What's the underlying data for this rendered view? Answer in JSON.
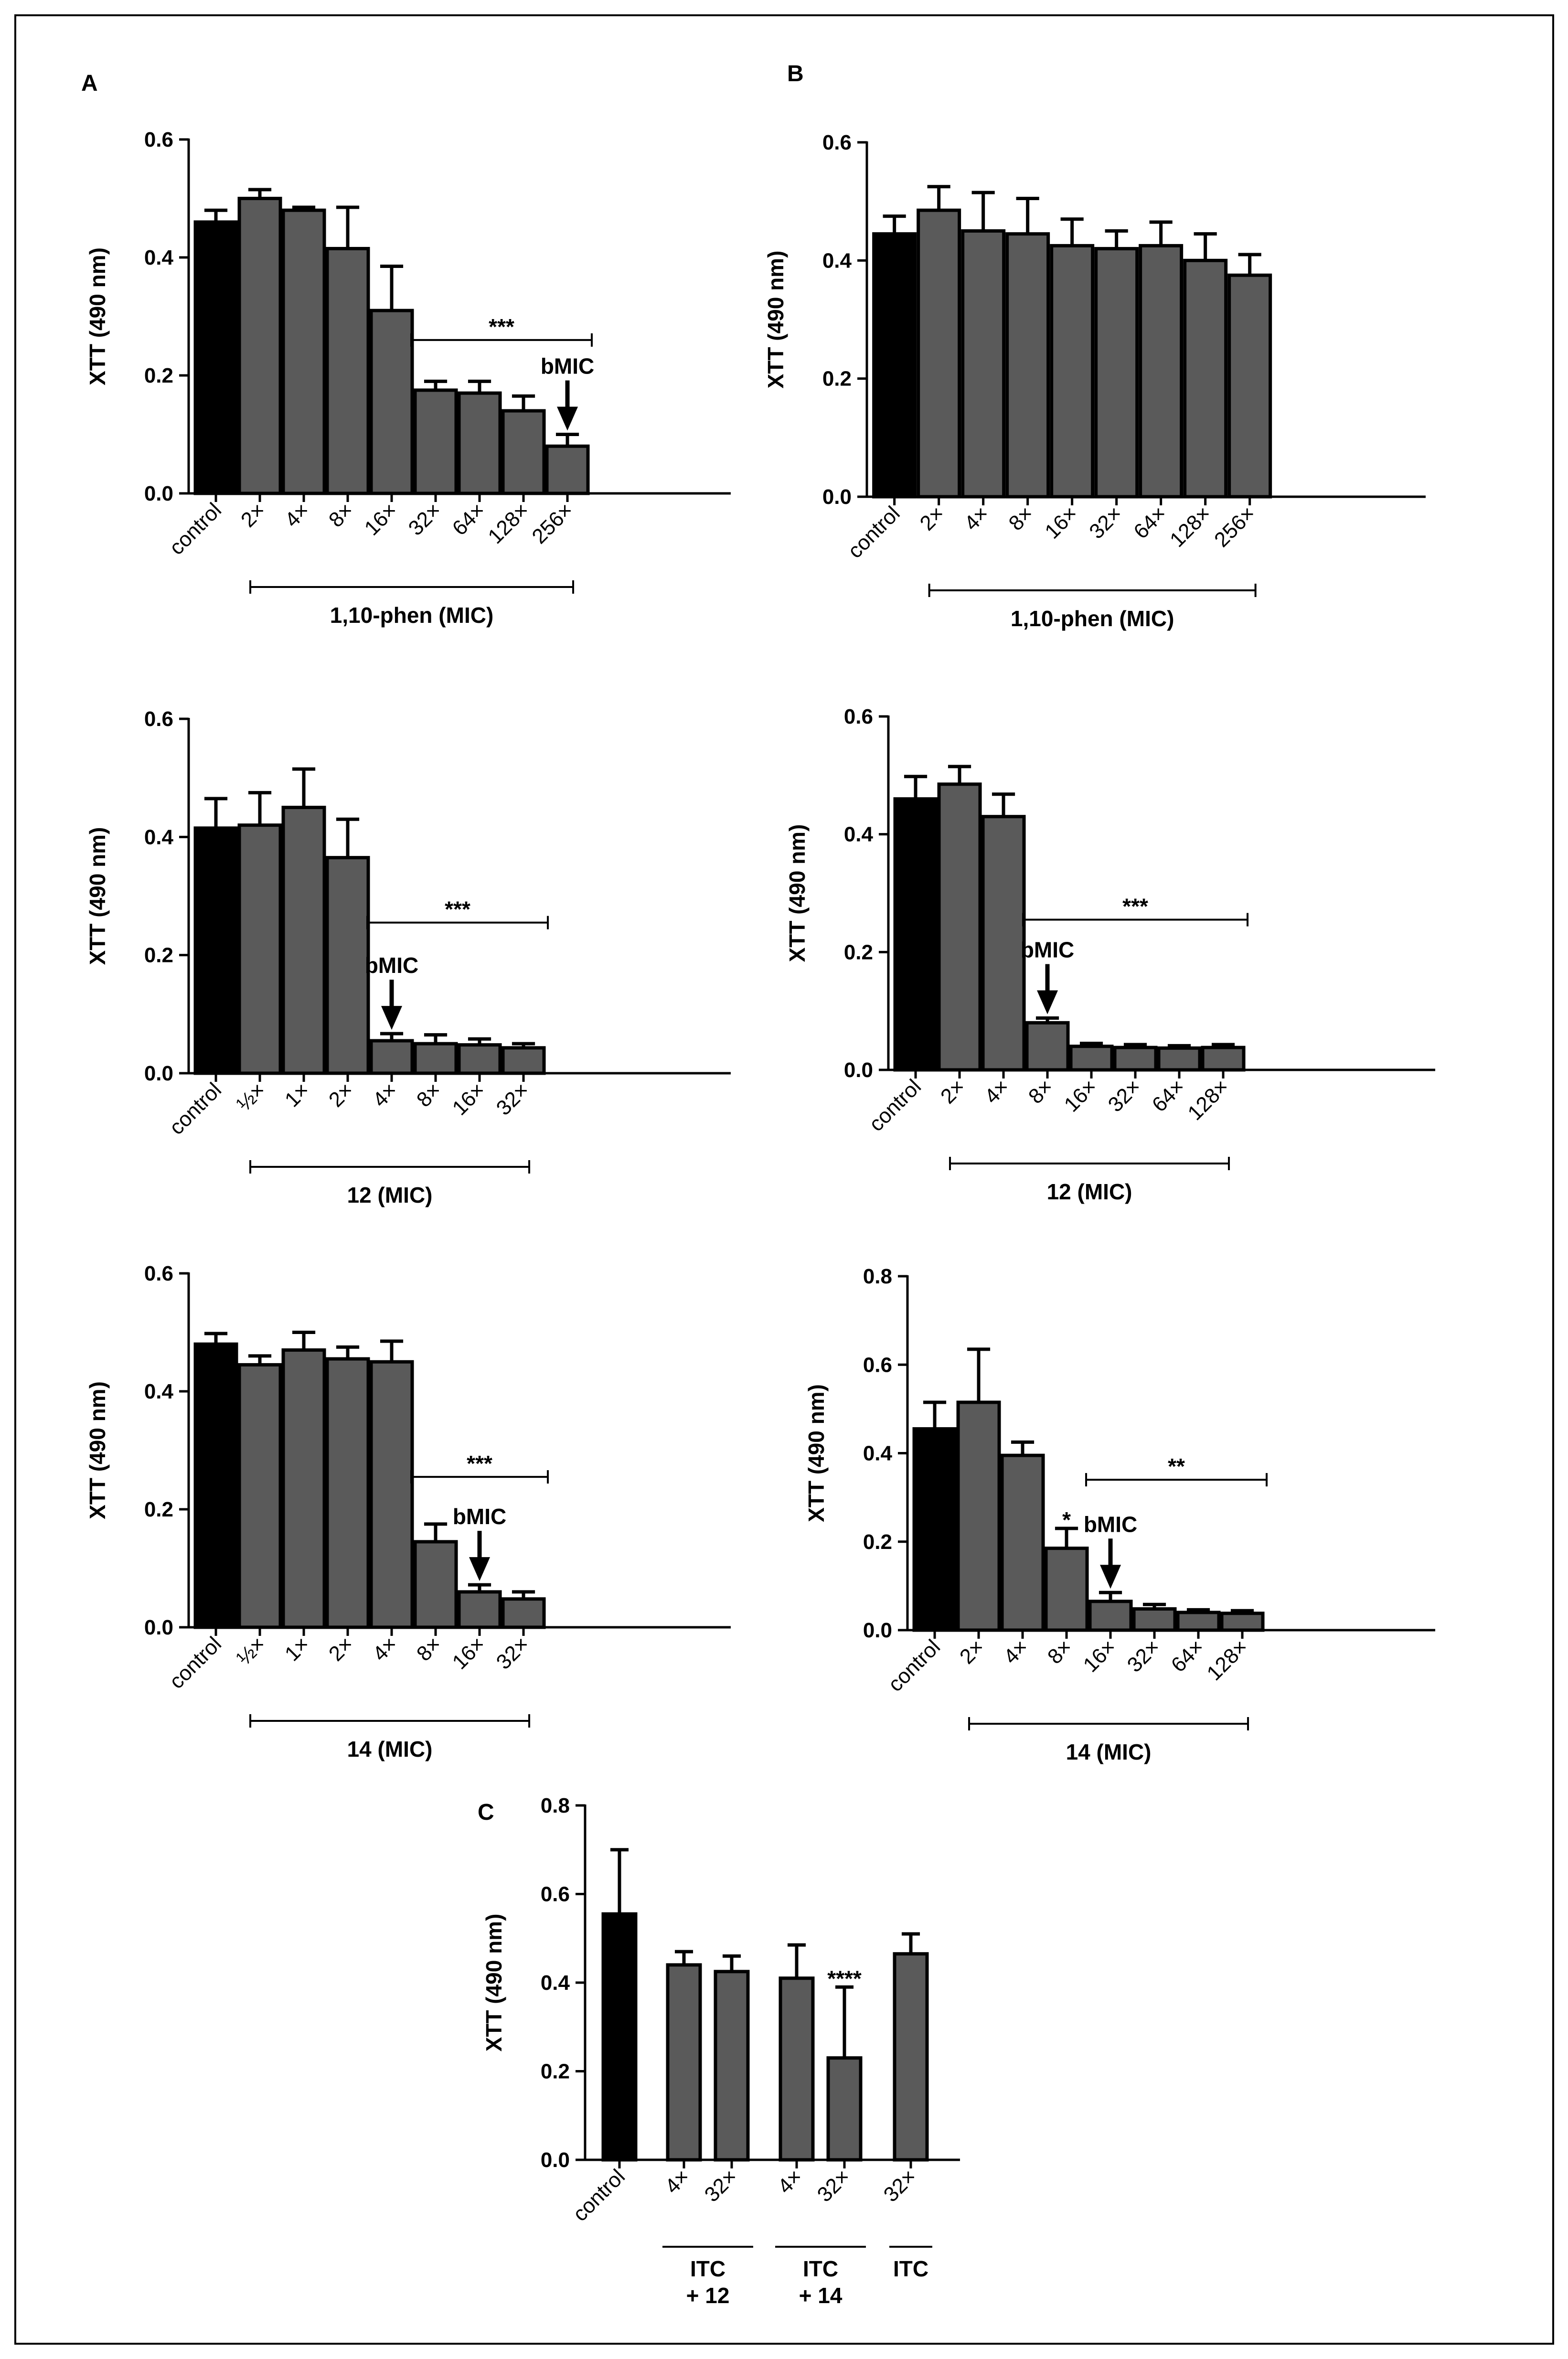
{
  "figure": {
    "panel_labels": [
      "A",
      "B",
      "C"
    ]
  },
  "colors": {
    "control_fill": "#000000",
    "bar_fill": "#5a5a5a",
    "stroke": "#000000",
    "border": "#000000"
  },
  "chart_data": [
    {
      "id": "A1",
      "type": "bar",
      "panel_label": "A",
      "ylabel": "XTT (490 nm)",
      "ylim": [
        0,
        0.6
      ],
      "yticks": [
        "0.0",
        "0.2",
        "0.4",
        "0.6"
      ],
      "categories": [
        "control",
        "2×",
        "4×",
        "8×",
        "16×",
        "32×",
        "64×",
        "128×",
        "256×"
      ],
      "values": [
        0.46,
        0.5,
        0.48,
        0.415,
        0.31,
        0.175,
        0.17,
        0.14,
        0.08
      ],
      "errors": [
        0.02,
        0.015,
        0.005,
        0.07,
        0.075,
        0.015,
        0.02,
        0.025,
        0.02
      ],
      "groups": [
        {
          "label": "1,10-phen (MIC)",
          "from": 1,
          "to": 8
        }
      ],
      "significance": [
        {
          "text": "***",
          "from": 5,
          "to": 8,
          "y": 0.26
        }
      ],
      "bmic": {
        "label": "bMIC",
        "index": 8
      }
    },
    {
      "id": "B1",
      "type": "bar",
      "panel_label": "B",
      "ylabel": "XTT (490 nm)",
      "ylim": [
        0,
        0.6
      ],
      "yticks": [
        "0.0",
        "0.2",
        "0.4",
        "0.6"
      ],
      "categories": [
        "control",
        "2×",
        "4×",
        "8×",
        "16×",
        "32×",
        "64×",
        "128×",
        "256×"
      ],
      "values": [
        0.445,
        0.485,
        0.45,
        0.445,
        0.425,
        0.42,
        0.425,
        0.4,
        0.375
      ],
      "errors": [
        0.03,
        0.04,
        0.065,
        0.06,
        0.045,
        0.03,
        0.04,
        0.045,
        0.035
      ],
      "groups": [
        {
          "label": "1,10-phen (MIC)",
          "from": 1,
          "to": 8
        }
      ],
      "significance": [],
      "bmic": null
    },
    {
      "id": "A2",
      "type": "bar",
      "panel_label": "",
      "ylabel": "XTT (490 nm)",
      "ylim": [
        0,
        0.6
      ],
      "yticks": [
        "0.0",
        "0.2",
        "0.4",
        "0.6"
      ],
      "categories": [
        "control",
        "½×",
        "1×",
        "2×",
        "4×",
        "8×",
        "16×",
        "32×"
      ],
      "values": [
        0.415,
        0.42,
        0.45,
        0.365,
        0.055,
        0.05,
        0.048,
        0.043
      ],
      "errors": [
        0.05,
        0.055,
        0.065,
        0.065,
        0.012,
        0.015,
        0.01,
        0.007
      ],
      "groups": [
        {
          "label": "12 (MIC)",
          "from": 1,
          "to": 7
        }
      ],
      "significance": [
        {
          "text": "***",
          "from": 4,
          "to": 7,
          "y": 0.255
        }
      ],
      "bmic": {
        "label": "bMIC",
        "index": 4
      }
    },
    {
      "id": "B2",
      "type": "bar",
      "panel_label": "",
      "ylabel": "XTT (490 nm)",
      "ylim": [
        0,
        0.6
      ],
      "yticks": [
        "0.0",
        "0.2",
        "0.4",
        "0.6"
      ],
      "categories": [
        "control",
        "2×",
        "4×",
        "8×",
        "16×",
        "32×",
        "64×",
        "128×"
      ],
      "values": [
        0.46,
        0.485,
        0.43,
        0.08,
        0.04,
        0.038,
        0.037,
        0.038
      ],
      "errors": [
        0.038,
        0.03,
        0.038,
        0.008,
        0.005,
        0.005,
        0.004,
        0.005
      ],
      "groups": [
        {
          "label": "12 (MIC)",
          "from": 1,
          "to": 7
        }
      ],
      "significance": [
        {
          "text": "***",
          "from": 3,
          "to": 7,
          "y": 0.255
        }
      ],
      "bmic": {
        "label": "bMIC",
        "index": 3
      }
    },
    {
      "id": "A3",
      "type": "bar",
      "panel_label": "",
      "ylabel": "XTT (490 nm)",
      "ylim": [
        0,
        0.6
      ],
      "yticks": [
        "0.0",
        "0.2",
        "0.4",
        "0.6"
      ],
      "categories": [
        "control",
        "½×",
        "1×",
        "2×",
        "4×",
        "8×",
        "16×",
        "32×"
      ],
      "values": [
        0.48,
        0.445,
        0.47,
        0.455,
        0.45,
        0.145,
        0.06,
        0.048
      ],
      "errors": [
        0.018,
        0.015,
        0.03,
        0.02,
        0.035,
        0.03,
        0.012,
        0.012
      ],
      "groups": [
        {
          "label": "14 (MIC)",
          "from": 1,
          "to": 7
        }
      ],
      "significance": [
        {
          "text": "***",
          "from": 5,
          "to": 7,
          "y": 0.255
        }
      ],
      "bmic": {
        "label": "bMIC",
        "index": 6
      }
    },
    {
      "id": "B3",
      "type": "bar",
      "panel_label": "",
      "ylabel": "XTT (490 nm)",
      "ylim": [
        0,
        0.8
      ],
      "yticks": [
        "0.0",
        "0.2",
        "0.4",
        "0.6",
        "0.8"
      ],
      "categories": [
        "control",
        "2×",
        "4×",
        "8×",
        "16×",
        "32×",
        "64×",
        "128×"
      ],
      "values": [
        0.455,
        0.515,
        0.395,
        0.185,
        0.065,
        0.048,
        0.04,
        0.038
      ],
      "errors": [
        0.06,
        0.12,
        0.03,
        0.045,
        0.02,
        0.01,
        0.006,
        0.006
      ],
      "groups": [
        {
          "label": "14 (MIC)",
          "from": 1,
          "to": 7
        }
      ],
      "significance": [
        {
          "text": "**",
          "from": 4,
          "to": 7,
          "y": 0.34
        },
        {
          "text": "*",
          "index": 3
        }
      ],
      "bmic": {
        "label": "bMIC",
        "index": 4
      }
    },
    {
      "id": "C",
      "type": "bar",
      "panel_label": "C",
      "ylabel": "XTT (490 nm)",
      "ylim": [
        0,
        0.8
      ],
      "yticks": [
        "0.0",
        "0.2",
        "0.4",
        "0.6",
        "0.8"
      ],
      "categories": [
        "control",
        "4×",
        "32×",
        "4×",
        "32×",
        "32×"
      ],
      "values": [
        0.555,
        0.44,
        0.425,
        0.41,
        0.23,
        0.465
      ],
      "errors": [
        0.145,
        0.03,
        0.035,
        0.075,
        0.16,
        0.045
      ],
      "groups": [
        {
          "label": "ITC",
          "label2": "+ 12",
          "from": 1,
          "to": 2
        },
        {
          "label": "ITC",
          "label2": "+ 14",
          "from": 3,
          "to": 4
        },
        {
          "label": "ITC",
          "label2": "",
          "from": 5,
          "to": 5
        }
      ],
      "significance": [
        {
          "text": "****",
          "index": 4
        }
      ],
      "bmic": null
    }
  ]
}
